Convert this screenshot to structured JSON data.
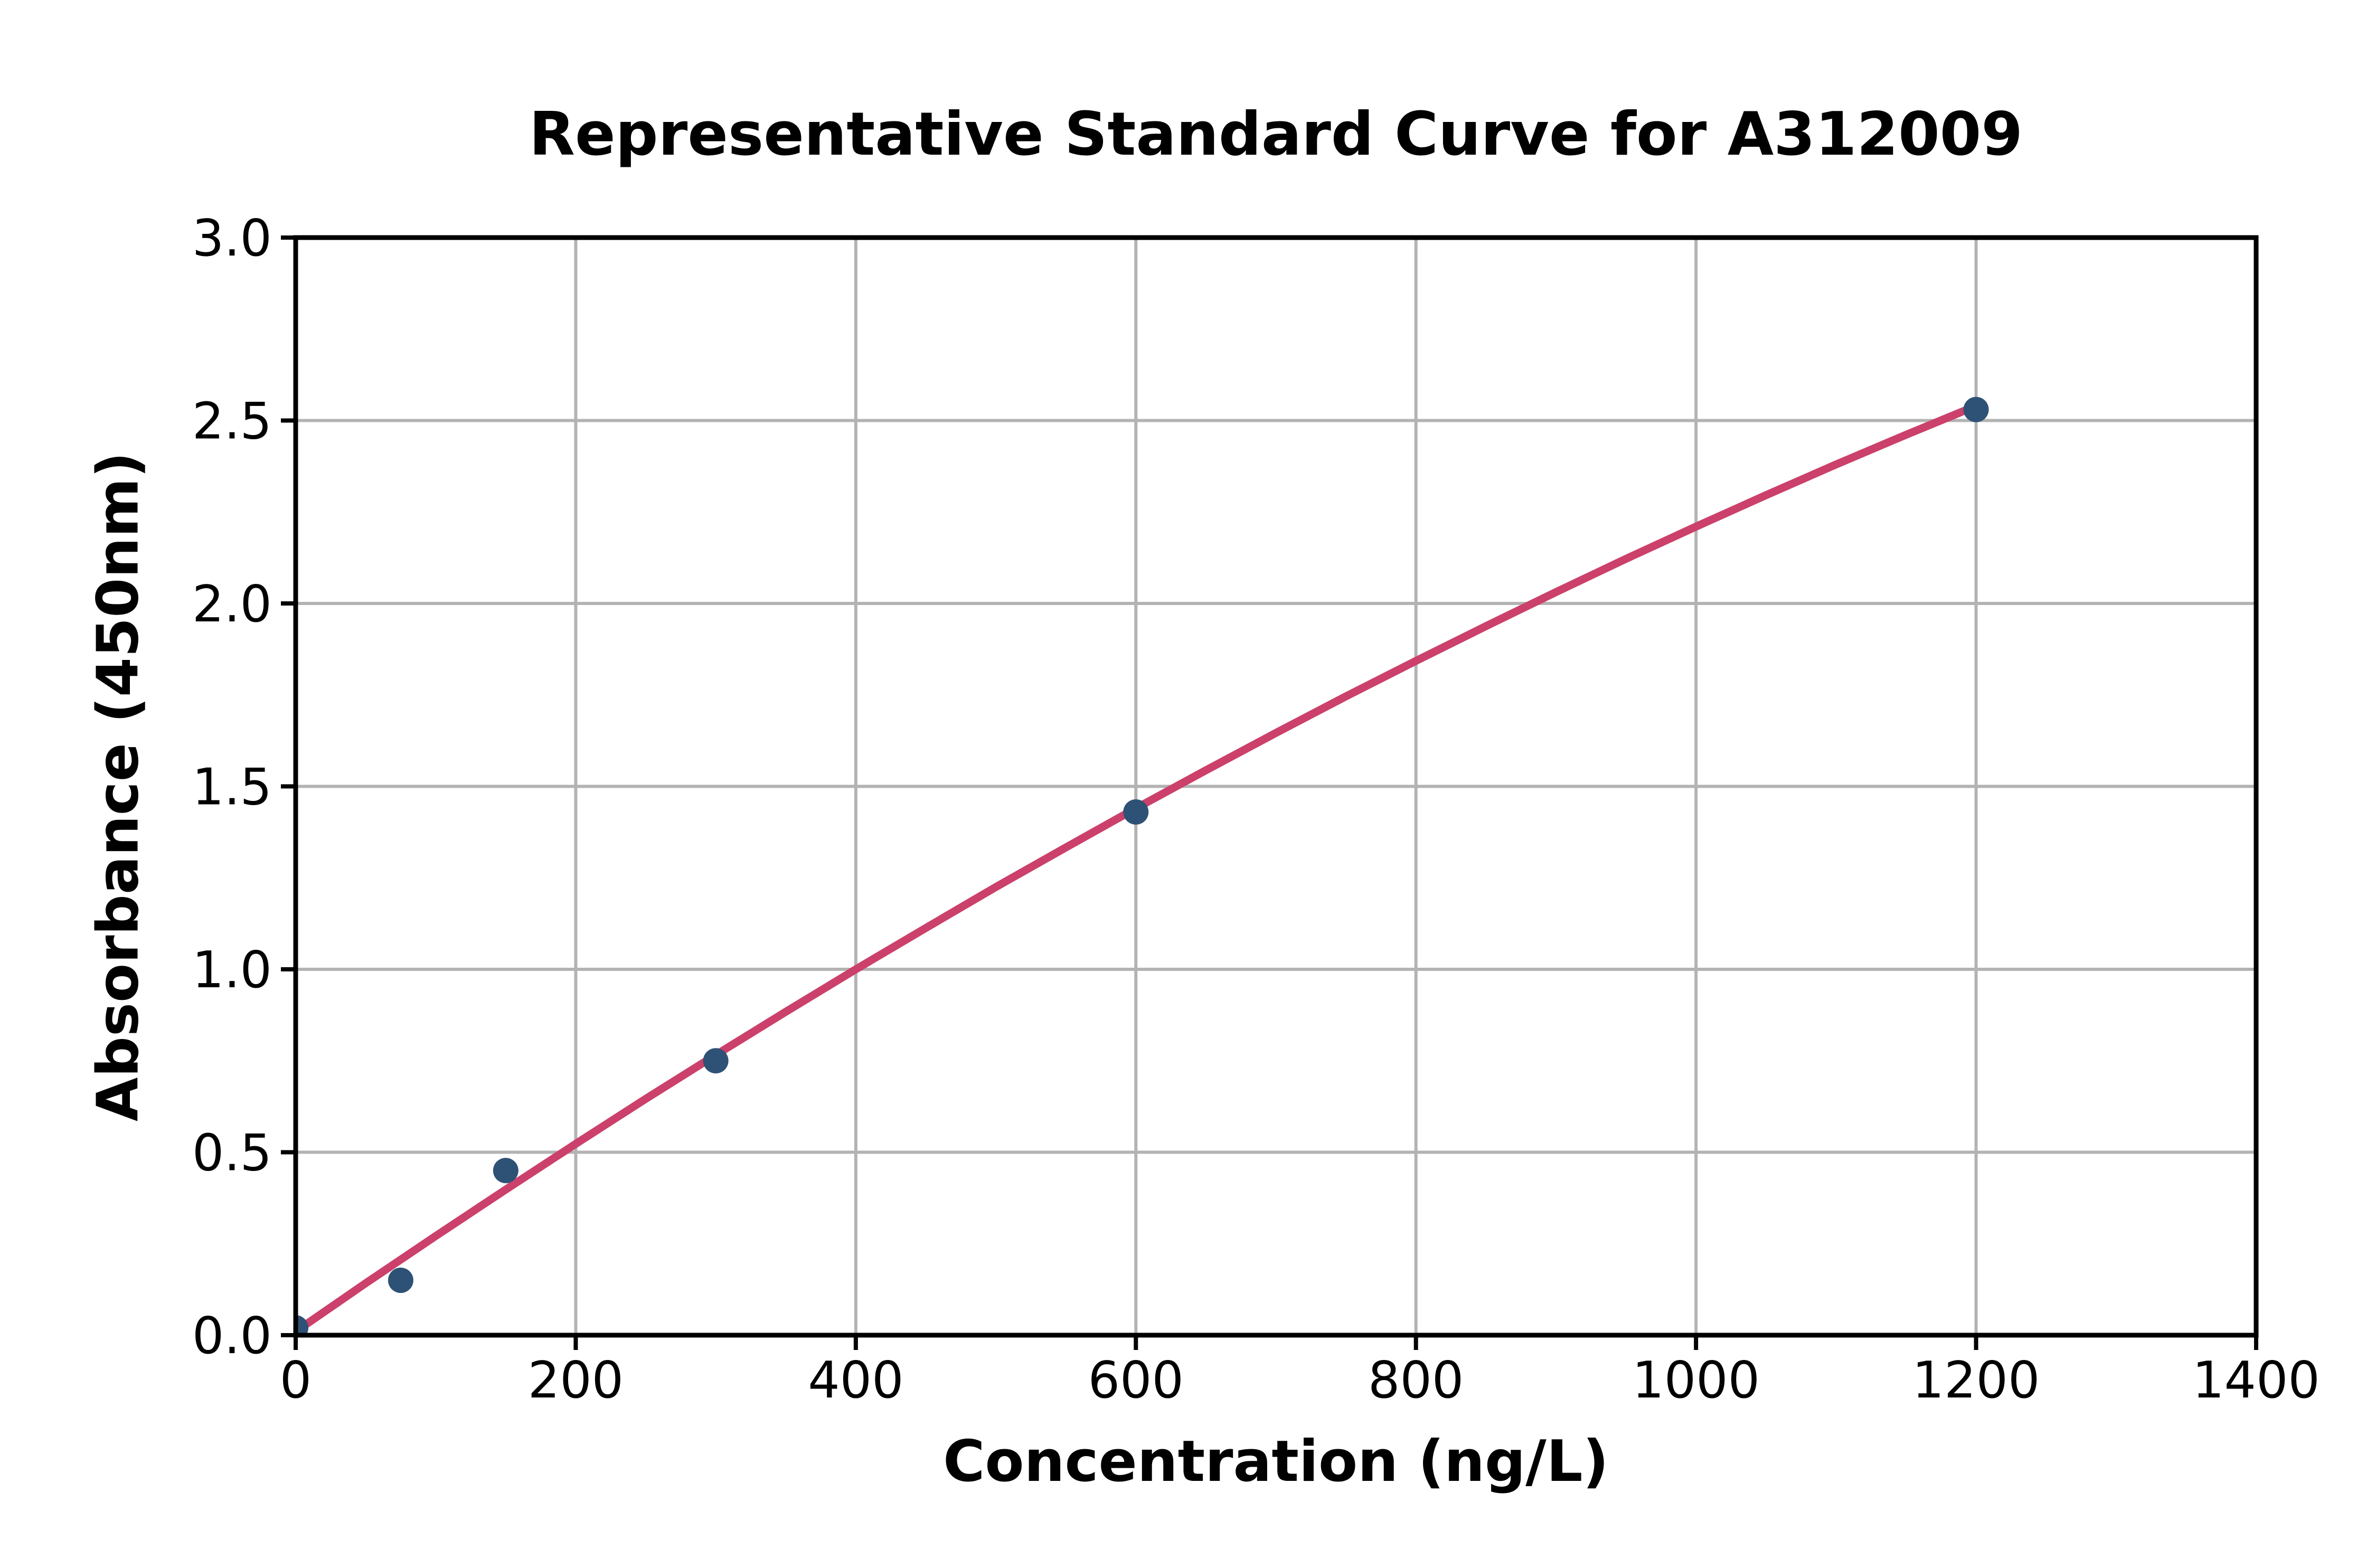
{
  "chart_data": {
    "type": "scatter",
    "title": "Representative Standard Curve for A312009",
    "xlabel": "Concentration (ng/L)",
    "ylabel": "Absorbance (450nm)",
    "xlim": [
      0,
      1400
    ],
    "ylim": [
      0,
      3.0
    ],
    "xticks": [
      0,
      200,
      400,
      600,
      800,
      1000,
      1200,
      1400
    ],
    "xtick_labels": [
      "0",
      "200",
      "400",
      "600",
      "800",
      "1000",
      "1200",
      "1400"
    ],
    "yticks": [
      0,
      0.5,
      1.0,
      1.5,
      2.0,
      2.5,
      3.0
    ],
    "ytick_labels": [
      "0.0",
      "0.5",
      "1.0",
      "1.5",
      "2.0",
      "2.5",
      "3.0"
    ],
    "grid": true,
    "legend": null,
    "series": [
      {
        "name": "standard-points",
        "type": "scatter",
        "x": [
          0,
          75,
          150,
          300,
          600,
          1200
        ],
        "y": [
          0.02,
          0.15,
          0.45,
          0.75,
          1.43,
          2.53
        ]
      },
      {
        "name": "fitted-curve",
        "type": "line",
        "x": [
          0,
          50,
          100,
          150,
          200,
          250,
          300,
          350,
          400,
          450,
          500,
          550,
          600,
          650,
          700,
          750,
          800,
          850,
          900,
          950,
          1000,
          1050,
          1100,
          1150,
          1200
        ],
        "y": [
          0.01,
          0.142,
          0.271,
          0.398,
          0.523,
          0.646,
          0.766,
          0.884,
          1.0,
          1.113,
          1.225,
          1.333,
          1.44,
          1.544,
          1.646,
          1.746,
          1.843,
          1.938,
          2.031,
          2.122,
          2.21,
          2.296,
          2.38,
          2.461,
          2.54
        ]
      }
    ],
    "colors": {
      "marker": "#2e5275",
      "line": "#cb416b",
      "grid": "#b3b3b3",
      "spine": "#000000",
      "text": "#000000",
      "background": "#ffffff"
    }
  }
}
